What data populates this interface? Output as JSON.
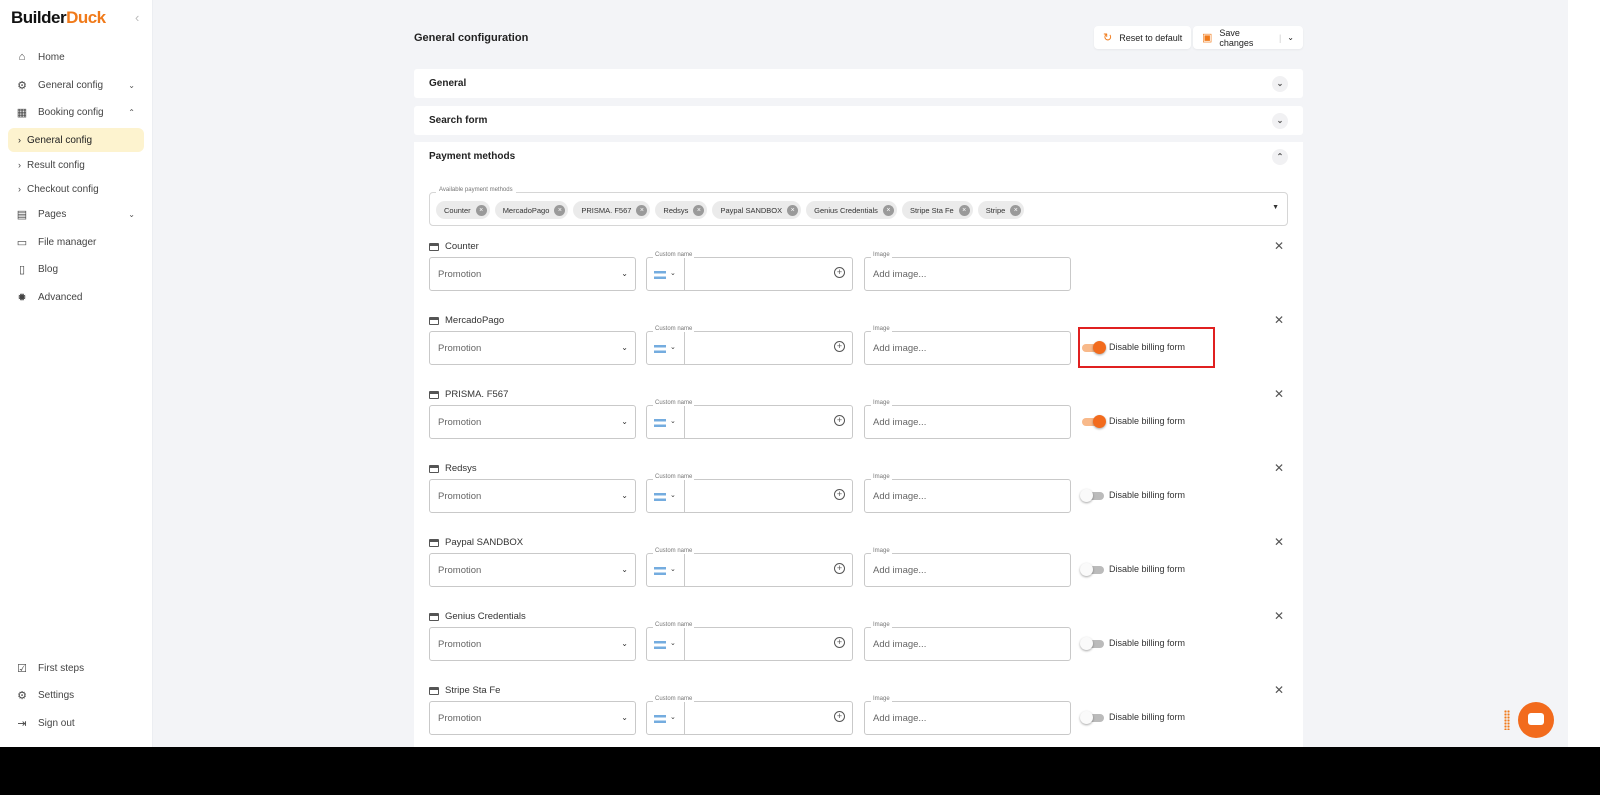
{
  "brand": {
    "part1": "Builder",
    "part2": "Duck"
  },
  "sidebar": {
    "items": [
      {
        "label": "Home",
        "icon": "home-icon",
        "chev": ""
      },
      {
        "label": "General config",
        "icon": "gear-icon",
        "chev": "⌄"
      },
      {
        "label": "Booking config",
        "icon": "calendar-icon",
        "chev": "⌃"
      },
      {
        "label": "Pages",
        "icon": "pages-icon",
        "chev": "⌄"
      },
      {
        "label": "File manager",
        "icon": "folder-icon",
        "chev": ""
      },
      {
        "label": "Blog",
        "icon": "document-icon",
        "chev": ""
      },
      {
        "label": "Advanced",
        "icon": "advanced-gear-icon",
        "chev": ""
      }
    ],
    "subitems": [
      {
        "label": "General config",
        "active": true
      },
      {
        "label": "Result config"
      },
      {
        "label": "Checkout config"
      }
    ],
    "bottom": [
      {
        "label": "First steps",
        "icon": "checklist-icon"
      },
      {
        "label": "Settings",
        "icon": "gear-icon"
      },
      {
        "label": "Sign out",
        "icon": "sign-out-icon"
      }
    ]
  },
  "header": {
    "title": "General configuration",
    "reset": "Reset to default",
    "save": "Save changes"
  },
  "sections": [
    {
      "label": "General",
      "expanded": false
    },
    {
      "label": "Search form",
      "expanded": false
    },
    {
      "label": "Payment methods",
      "expanded": true
    }
  ],
  "available": {
    "label": "Available payment methods",
    "chips": [
      "Counter",
      "MercadoPago",
      "PRISMA. F567",
      "Redsys",
      "Paypal SANDBOX",
      "Genius Credentials",
      "Stripe Sta Fe",
      "Stripe"
    ]
  },
  "fields": {
    "promotion": "Promotion",
    "custom_name": "Custom name",
    "image_label": "Image",
    "image_placeholder": "Add image...",
    "toggle_label": "Disable billing form"
  },
  "methods": [
    {
      "name": "Counter",
      "toggle": null
    },
    {
      "name": "MercadoPago",
      "toggle": true,
      "highlighted": true
    },
    {
      "name": "PRISMA. F567",
      "toggle": true
    },
    {
      "name": "Redsys",
      "toggle": false
    },
    {
      "name": "Paypal SANDBOX",
      "toggle": false
    },
    {
      "name": "Genius Credentials",
      "toggle": false
    },
    {
      "name": "Stripe Sta Fe",
      "toggle": false
    }
  ],
  "colors": {
    "accent": "#f26b1d",
    "active_nav": "#fdf3cf",
    "highlight": "#e02020"
  }
}
